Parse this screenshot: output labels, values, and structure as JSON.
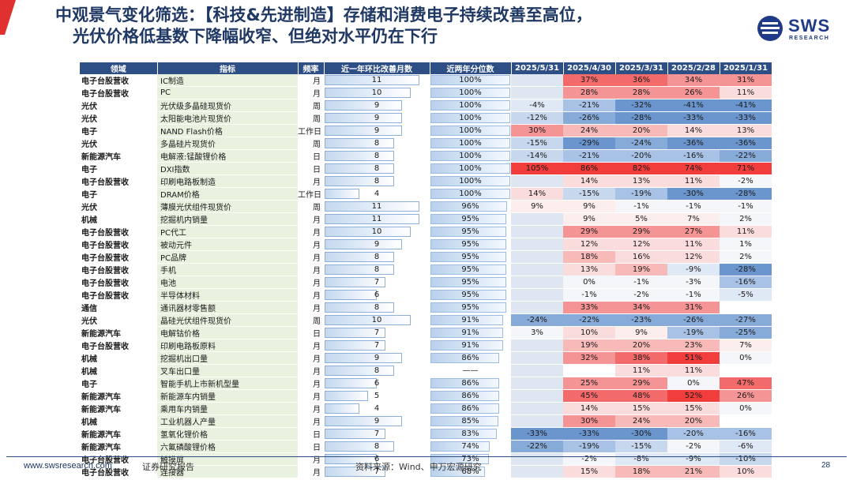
{
  "header": {
    "title_line1": "中观景气变化筛选：【科技&先进制造】存储和消费电子持续改善至高位，",
    "title_line2": "光伏价格低基数下降幅收窄、但绝对水平仍在下行",
    "accent_color": "#e03030",
    "title_color": "#1f3864"
  },
  "logo": {
    "name": "SWS",
    "sub": "RESEARCH",
    "color": "#1f3b87"
  },
  "table": {
    "columns": [
      "领域",
      "指标",
      "频率",
      "近一年环比改善月数",
      "近两年分位数",
      "2025/5/31",
      "2025/4/30",
      "2025/3/31",
      "2025/2/28",
      "2025/1/31"
    ],
    "count_max": 12,
    "rows": [
      {
        "domain": "电子台股营收",
        "indicator": "IC制造",
        "freq": "月",
        "count": 11,
        "pct": "100%",
        "v": [
          "",
          "37%",
          "36%",
          "34%",
          "31%"
        ]
      },
      {
        "domain": "电子台股营收",
        "indicator": "PC",
        "freq": "月",
        "count": 10,
        "pct": "100%",
        "v": [
          "",
          "28%",
          "28%",
          "26%",
          "11%"
        ]
      },
      {
        "domain": "光伏",
        "indicator": "光伏级多晶硅现货价",
        "freq": "周",
        "count": 9,
        "pct": "100%",
        "v": [
          "-4%",
          "-21%",
          "-32%",
          "-41%",
          "-41%"
        ]
      },
      {
        "domain": "光伏",
        "indicator": "太阳能电池片现货价",
        "freq": "周",
        "count": 9,
        "pct": "100%",
        "v": [
          "-12%",
          "-26%",
          "-28%",
          "-33%",
          "-33%"
        ]
      },
      {
        "domain": "电子",
        "indicator": "NAND Flash价格",
        "freq": "工作日",
        "count": 9,
        "pct": "100%",
        "v": [
          "30%",
          "24%",
          "20%",
          "14%",
          "13%"
        ]
      },
      {
        "domain": "光伏",
        "indicator": "多晶硅片现货价",
        "freq": "周",
        "count": 8,
        "pct": "100%",
        "v": [
          "-15%",
          "-29%",
          "-24%",
          "-36%",
          "-36%"
        ]
      },
      {
        "domain": "新能源汽车",
        "indicator": "电解液:锰酸锂价格",
        "freq": "日",
        "count": 8,
        "pct": "100%",
        "v": [
          "-14%",
          "-21%",
          "-20%",
          "-16%",
          "-22%"
        ]
      },
      {
        "domain": "电子",
        "indicator": "DXI指数",
        "freq": "日",
        "count": 8,
        "pct": "100%",
        "v": [
          "105%",
          "86%",
          "82%",
          "74%",
          "71%"
        ]
      },
      {
        "domain": "电子台股营收",
        "indicator": "印刷电路板制造",
        "freq": "月",
        "count": 8,
        "pct": "100%",
        "v": [
          "",
          "14%",
          "13%",
          "11%",
          "-2%"
        ]
      },
      {
        "domain": "电子",
        "indicator": "DRAM价格",
        "freq": "工作日",
        "count": 4,
        "pct": "100%",
        "v": [
          "14%",
          "-15%",
          "-19%",
          "-30%",
          "-28%"
        ]
      },
      {
        "domain": "光伏",
        "indicator": "薄膜光伏组件现货价",
        "freq": "周",
        "count": 11,
        "pct": "96%",
        "v": [
          "9%",
          "9%",
          "-1%",
          "-1%",
          "-1%"
        ]
      },
      {
        "domain": "机械",
        "indicator": "挖掘机内销量",
        "freq": "月",
        "count": 11,
        "pct": "95%",
        "v": [
          "",
          "9%",
          "5%",
          "7%",
          "2%"
        ]
      },
      {
        "domain": "电子台股营收",
        "indicator": "PC代工",
        "freq": "月",
        "count": 10,
        "pct": "95%",
        "v": [
          "",
          "29%",
          "29%",
          "27%",
          "11%"
        ]
      },
      {
        "domain": "电子台股营收",
        "indicator": "被动元件",
        "freq": "月",
        "count": 9,
        "pct": "95%",
        "v": [
          "",
          "12%",
          "12%",
          "11%",
          "1%"
        ]
      },
      {
        "domain": "电子台股营收",
        "indicator": "PC品牌",
        "freq": "月",
        "count": 8,
        "pct": "95%",
        "v": [
          "",
          "18%",
          "16%",
          "12%",
          "2%"
        ]
      },
      {
        "domain": "电子台股营收",
        "indicator": "手机",
        "freq": "月",
        "count": 8,
        "pct": "95%",
        "v": [
          "",
          "13%",
          "19%",
          "-9%",
          "-28%"
        ]
      },
      {
        "domain": "电子台股营收",
        "indicator": "电池",
        "freq": "月",
        "count": 7,
        "pct": "95%",
        "v": [
          "",
          "0%",
          "-1%",
          "-3%",
          "-16%"
        ]
      },
      {
        "domain": "电子台股营收",
        "indicator": "半导体材料",
        "freq": "月",
        "count": 6,
        "pct": "95%",
        "v": [
          "",
          "-1%",
          "-2%",
          "-1%",
          "-5%"
        ]
      },
      {
        "domain": "通信",
        "indicator": "通讯器材零售额",
        "freq": "月",
        "count": 8,
        "pct": "95%",
        "v": [
          "",
          "33%",
          "34%",
          "31%",
          ""
        ]
      },
      {
        "domain": "光伏",
        "indicator": "晶硅光伏组件现货价",
        "freq": "周",
        "count": 10,
        "pct": "91%",
        "v": [
          "-24%",
          "-22%",
          "-23%",
          "-26%",
          "-27%"
        ]
      },
      {
        "domain": "新能源汽车",
        "indicator": "电解钴价格",
        "freq": "日",
        "count": 7,
        "pct": "91%",
        "v": [
          "3%",
          "10%",
          "9%",
          "-19%",
          "-25%"
        ]
      },
      {
        "domain": "电子台股营收",
        "indicator": "印刷电路板原料",
        "freq": "月",
        "count": 7,
        "pct": "91%",
        "v": [
          "",
          "19%",
          "20%",
          "23%",
          "7%"
        ]
      },
      {
        "domain": "机械",
        "indicator": "挖掘机出口量",
        "freq": "月",
        "count": 9,
        "pct": "86%",
        "v": [
          "",
          "32%",
          "38%",
          "51%",
          "0%"
        ]
      },
      {
        "domain": "机械",
        "indicator": "叉车出口量",
        "freq": "月",
        "count": 8,
        "pct": "——",
        "v": [
          "",
          "",
          "11%",
          "11%",
          ""
        ]
      },
      {
        "domain": "电子",
        "indicator": "智能手机上市新机型量",
        "freq": "月",
        "count": 6,
        "pct": "86%",
        "v": [
          "",
          "25%",
          "29%",
          "0%",
          "47%"
        ]
      },
      {
        "domain": "新能源汽车",
        "indicator": "新能源车内销量",
        "freq": "月",
        "count": 5,
        "pct": "86%",
        "v": [
          "",
          "45%",
          "48%",
          "52%",
          "26%"
        ]
      },
      {
        "domain": "新能源汽车",
        "indicator": "乘用车内销量",
        "freq": "月",
        "count": 4,
        "pct": "86%",
        "v": [
          "",
          "14%",
          "15%",
          "15%",
          "0%"
        ]
      },
      {
        "domain": "机械",
        "indicator": "工业机器人产量",
        "freq": "月",
        "count": 9,
        "pct": "85%",
        "v": [
          "",
          "30%",
          "24%",
          "20%",
          ""
        ]
      },
      {
        "domain": "新能源汽车",
        "indicator": "氢氧化锂价格",
        "freq": "日",
        "count": 7,
        "pct": "83%",
        "v": [
          "-33%",
          "-33%",
          "-30%",
          "-20%",
          "-16%"
        ]
      },
      {
        "domain": "新能源汽车",
        "indicator": "六氟磷酸锂价格",
        "freq": "日",
        "count": 8,
        "pct": "74%",
        "v": [
          "-22%",
          "-19%",
          "-15%",
          "-2%",
          "-6%"
        ]
      },
      {
        "domain": "电子台股营收",
        "indicator": "触摸屏",
        "freq": "月",
        "count": 6,
        "pct": "73%",
        "v": [
          "",
          "-2%",
          "-8%",
          "-9%",
          "-10%"
        ]
      },
      {
        "domain": "电子台股营收",
        "indicator": "连接器",
        "freq": "月",
        "count": 7,
        "pct": "68%",
        "v": [
          "",
          "15%",
          "18%",
          "21%",
          "10%"
        ]
      }
    ]
  },
  "footer": {
    "url": "www.swsresearch.com",
    "report": "证券研究报告",
    "source": "资料来源：Wind、申万宏源研究",
    "page": "28"
  }
}
